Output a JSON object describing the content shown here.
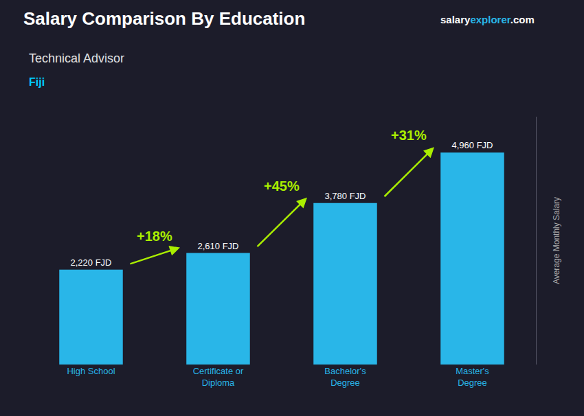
{
  "chart_data": {
    "type": "bar",
    "title": "Salary Comparison By Education",
    "subtitle": "Technical Advisor",
    "country": "Fiji",
    "brand": [
      "salary",
      "explorer",
      ".com"
    ],
    "ylabel": "Average Monthly Salary",
    "categories": [
      "High School",
      "Certificate or\nDiploma",
      "Bachelor's\nDegree",
      "Master's\nDegree"
    ],
    "values": [
      2220,
      2610,
      3780,
      4960
    ],
    "value_labels": [
      "2,220 FJD",
      "2,610 FJD",
      "3,780 FJD",
      "4,960 FJD"
    ],
    "data_labels": true,
    "annotations": [
      "+18%",
      "+45%",
      "+31%"
    ],
    "color": "#29b6e8",
    "ylim": [
      0,
      5800
    ],
    "yticks": [],
    "tick_labels": "x",
    "grid": false
  }
}
